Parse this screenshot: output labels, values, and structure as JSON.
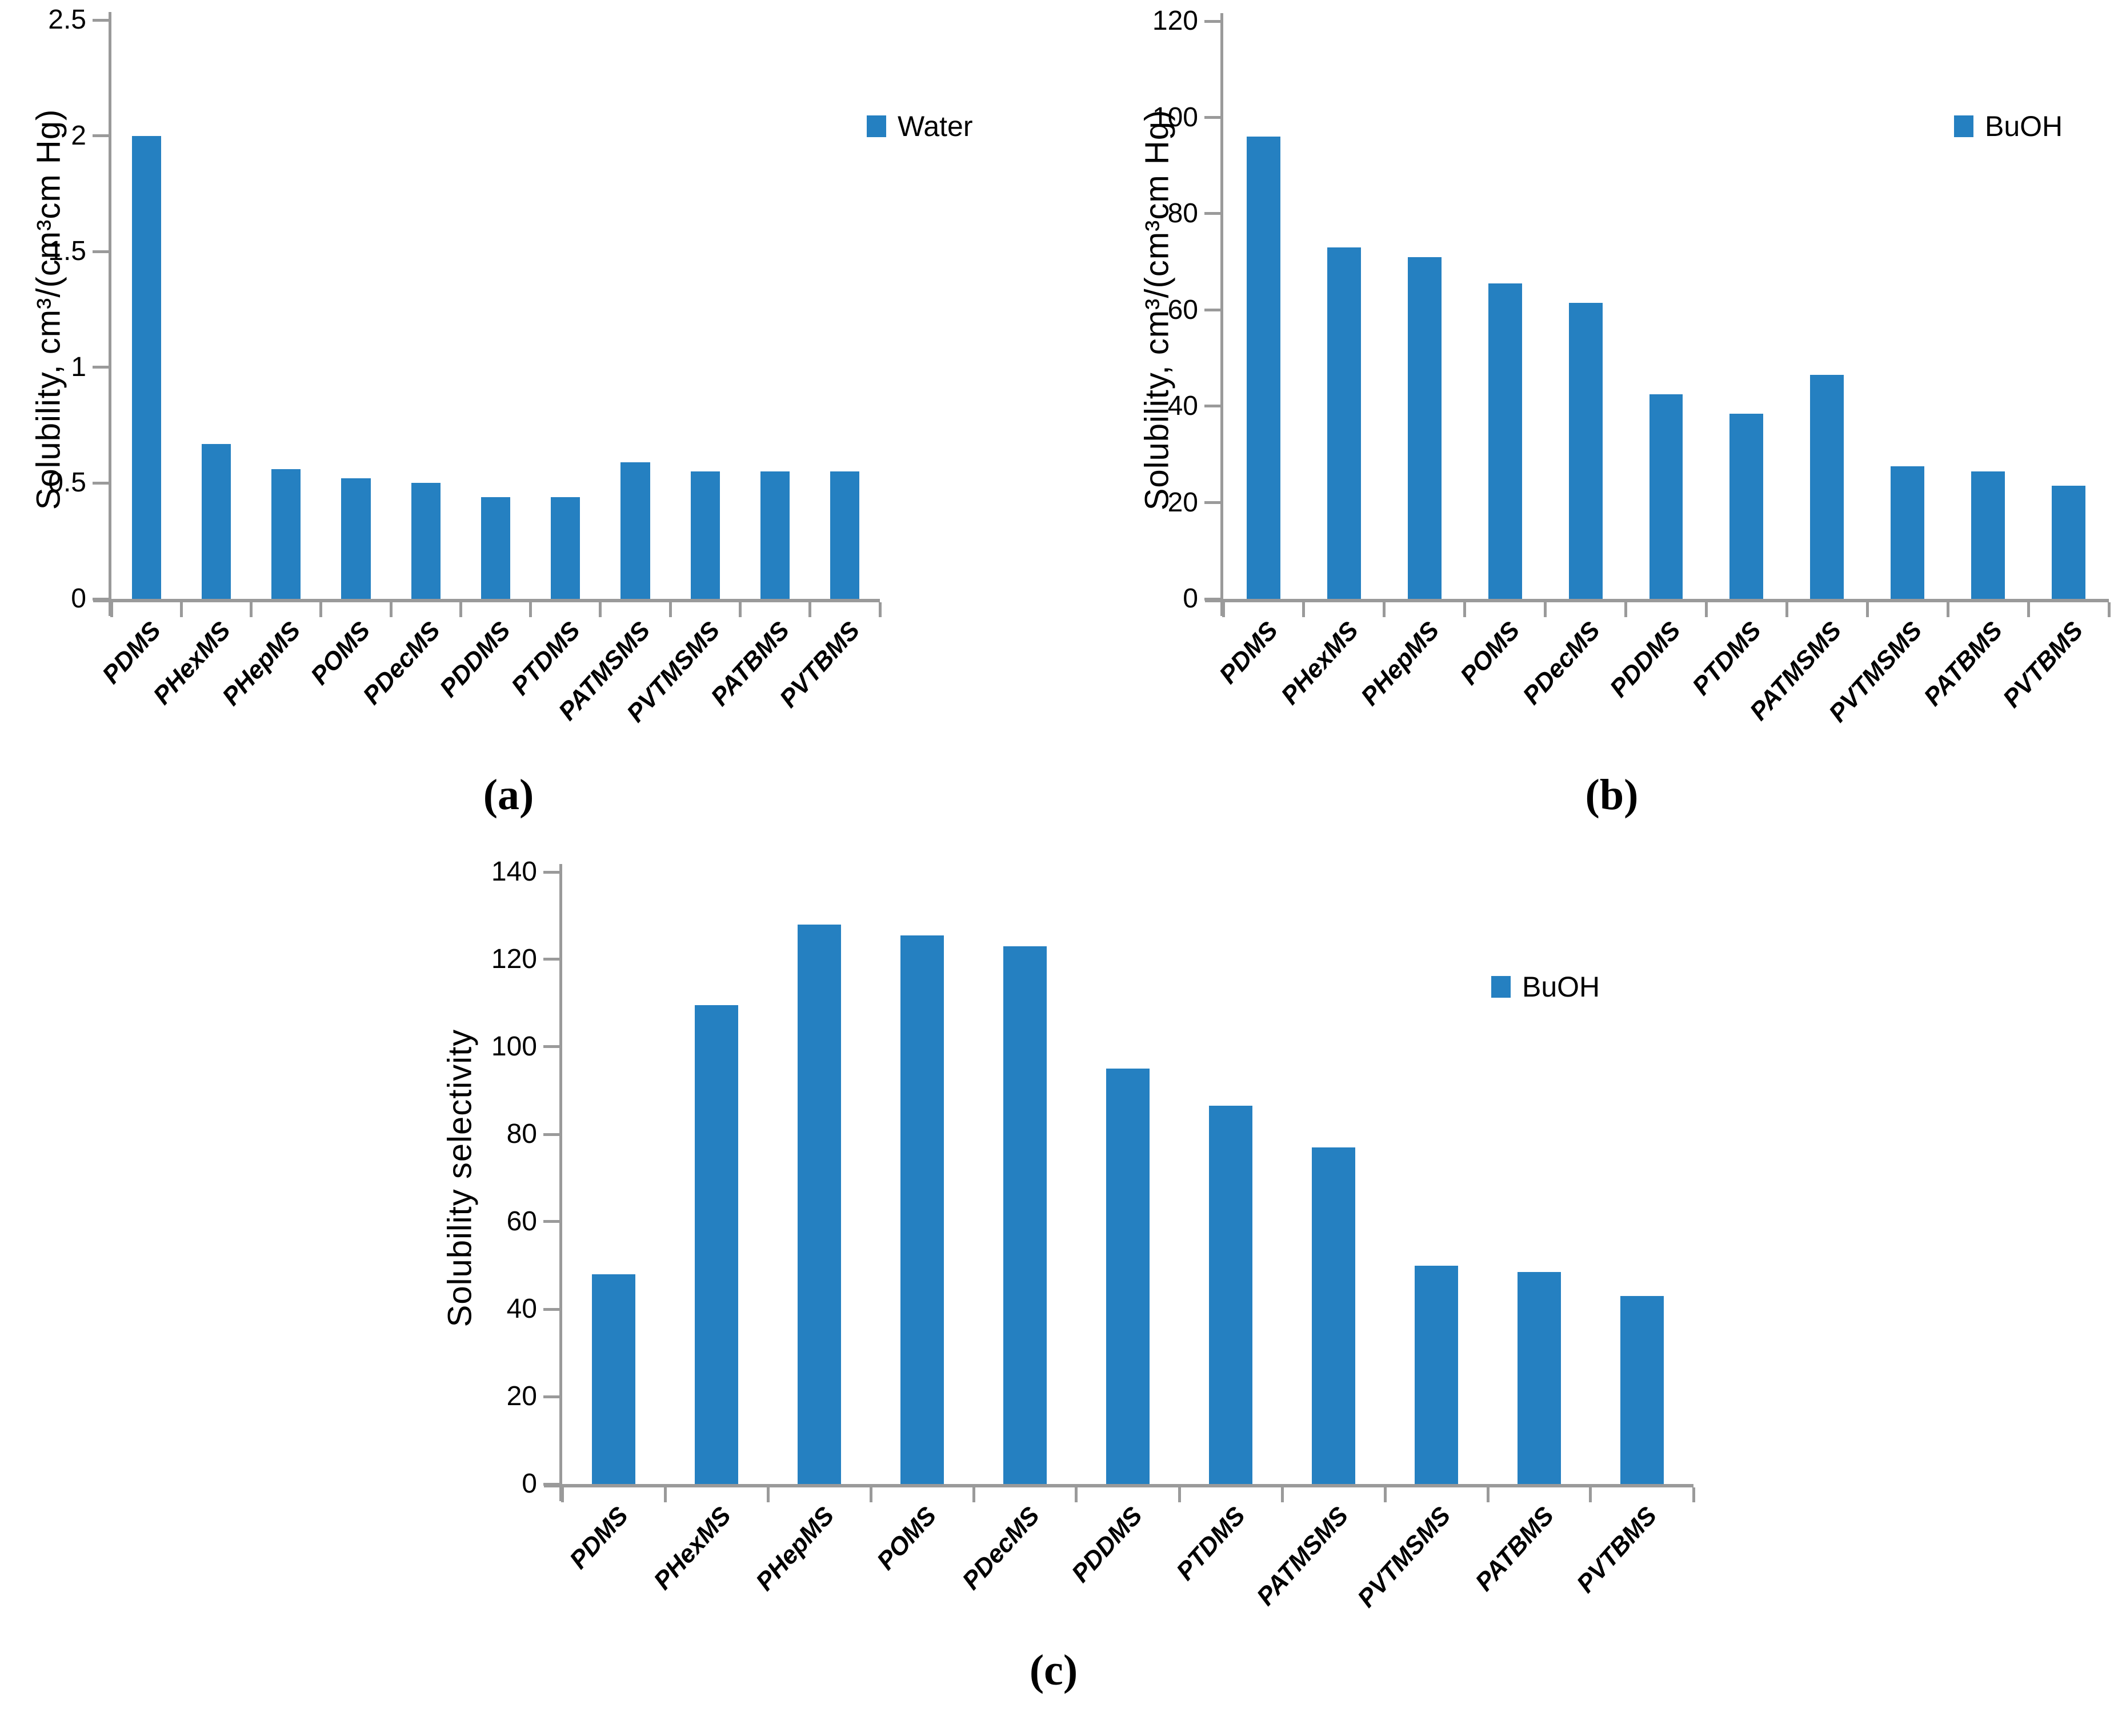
{
  "figure": {
    "background": "#ffffff",
    "bar_color": "#2580C1",
    "axis_color": "#9a9a9a",
    "text_color": "#000000"
  },
  "chart_data": [
    {
      "type": "bar",
      "panel": "a",
      "caption": "(a)",
      "categories": [
        "PDMS",
        "PHexMS",
        "PHepMS",
        "POMS",
        "PDecMS",
        "PDDMS",
        "PTDMS",
        "PATMSMS",
        "PVTMSMS",
        "PATBMS",
        "PVTBMS"
      ],
      "values": [
        2.0,
        0.67,
        0.56,
        0.52,
        0.5,
        0.44,
        0.44,
        0.59,
        0.55,
        0.55,
        0.55
      ],
      "legend": [
        "Water"
      ],
      "legend_position": "inside top-right",
      "ylabel": "Solubility, cm³/(cm³cm Hg)",
      "xlabel": "",
      "ylim": [
        0,
        2.5
      ],
      "yticks": [
        0,
        0.5,
        1,
        1.5,
        2,
        2.5
      ],
      "grid": false
    },
    {
      "type": "bar",
      "panel": "b",
      "caption": "(b)",
      "categories": [
        "PDMS",
        "PHexMS",
        "PHepMS",
        "POMS",
        "PDecMS",
        "PDDMS",
        "PTDMS",
        "PATMSMS",
        "PVTMSMS",
        "PATBMS",
        "PVTBMS"
      ],
      "values": [
        96,
        73,
        71,
        65.5,
        61.5,
        42.5,
        38.5,
        46.5,
        27.5,
        26.5,
        23.5
      ],
      "legend": [
        "BuOH"
      ],
      "legend_position": "inside top-right",
      "ylabel": "Solubility, cm³/(cm³cm Hg)",
      "xlabel": "",
      "ylim": [
        0,
        120
      ],
      "yticks": [
        0,
        20,
        40,
        60,
        80,
        100,
        120
      ],
      "grid": false
    },
    {
      "type": "bar",
      "panel": "c",
      "caption": "(c)",
      "categories": [
        "PDMS",
        "PHexMS",
        "PHepMS",
        "POMS",
        "PDecMS",
        "PDDMS",
        "PTDMS",
        "PATMSMS",
        "PVTMSMS",
        "PATBMS",
        "PVTBMS"
      ],
      "values": [
        48,
        109.5,
        128,
        125.5,
        123,
        95,
        86.5,
        77,
        50,
        48.5,
        43
      ],
      "legend": [
        "BuOH"
      ],
      "legend_position": "inside top-right",
      "ylabel": "Solubility selectivity",
      "xlabel": "",
      "ylim": [
        0,
        140
      ],
      "yticks": [
        0,
        20,
        40,
        60,
        80,
        100,
        120,
        140
      ],
      "grid": false
    }
  ]
}
